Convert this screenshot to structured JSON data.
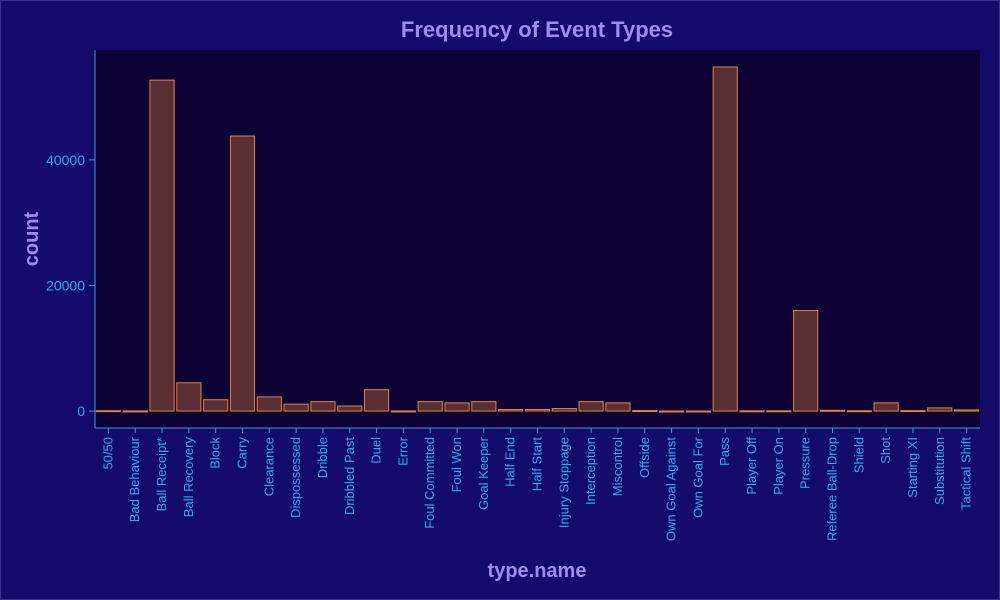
{
  "chart_data": {
    "type": "bar",
    "title": "Frequency of Event Types",
    "xlabel": "type.name",
    "ylabel": "count",
    "ylim": [
      -2700,
      57500
    ],
    "yticks": [
      0,
      20000,
      40000
    ],
    "ytick_labels": [
      "0",
      "20000",
      "40000"
    ],
    "categories": [
      "50/50",
      "Bad Behaviour",
      "Ball Receipt*",
      "Ball Recovery",
      "Block",
      "Carry",
      "Clearance",
      "Dispossessed",
      "Dribble",
      "Dribbled Past",
      "Duel",
      "Error",
      "Foul Committed",
      "Foul Won",
      "Goal Keeper",
      "Half End",
      "Half Start",
      "Injury Stoppage",
      "Interception",
      "Miscontrol",
      "Offside",
      "Own Goal Against",
      "Own Goal For",
      "Pass",
      "Player Off",
      "Player On",
      "Pressure",
      "Referee Ball-Drop",
      "Shield",
      "Shot",
      "Starting XI",
      "Substitution",
      "Tactical Shift"
    ],
    "values": [
      60,
      20,
      52700,
      4500,
      1800,
      43800,
      2250,
      1100,
      1500,
      800,
      3400,
      15,
      1500,
      1300,
      1500,
      250,
      250,
      400,
      1500,
      1300,
      80,
      10,
      10,
      54800,
      40,
      40,
      16000,
      120,
      50,
      1300,
      70,
      500,
      180
    ],
    "grid": false,
    "legend": "none",
    "colors": {
      "background": "#140a6b",
      "plot_background": "#0c0236",
      "bar_fill": "#5a2f33",
      "bar_stroke": "#e8823a",
      "axis": "#3aa0d8",
      "tick_text": "#22b0f0",
      "title_text": "#a08cf0"
    }
  }
}
